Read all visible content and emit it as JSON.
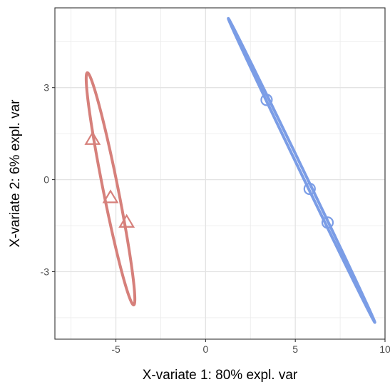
{
  "chart_data": {
    "type": "scatter",
    "title": "",
    "xlabel": "X-variate 1: 80% expl. var",
    "ylabel": "X-variate 2: 6% expl. var",
    "xlim": [
      -8.4,
      10.0
    ],
    "ylim": [
      -5.2,
      5.6
    ],
    "x_ticks": [
      -5,
      0,
      5,
      10
    ],
    "x_tick_labels": [
      "-5",
      "0",
      "5",
      "10"
    ],
    "y_ticks": [
      -3,
      0,
      3
    ],
    "y_tick_labels": [
      "-3",
      "0",
      "3"
    ],
    "grid": true,
    "legend": "none",
    "series": [
      {
        "marker": "triangle",
        "color": "#D6807B",
        "points": [
          {
            "x": -6.3,
            "y": 1.3
          },
          {
            "x": -5.3,
            "y": -0.6
          },
          {
            "x": -4.4,
            "y": -1.4
          }
        ],
        "ellipse": {
          "cx": -5.3,
          "cy": -0.3,
          "rx": 4.0,
          "ry": 0.4,
          "angle_deg": -71.0
        }
      },
      {
        "marker": "circle",
        "color": "#7B9DE6",
        "points": [
          {
            "x": 3.4,
            "y": 2.6
          },
          {
            "x": 5.8,
            "y": -0.3
          },
          {
            "x": 6.8,
            "y": -1.4
          }
        ],
        "ellipse": {
          "cx": 5.35,
          "cy": 0.3,
          "rx": 6.42,
          "ry": 0.08,
          "angle_deg": -50.5
        }
      }
    ]
  }
}
